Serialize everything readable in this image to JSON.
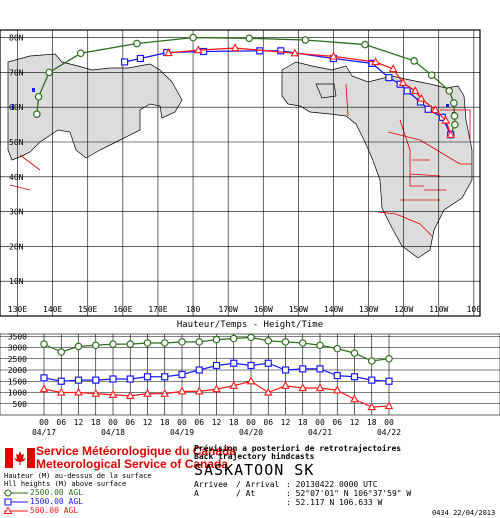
{
  "map": {
    "lat_labels": [
      "80N",
      "70N",
      "60N",
      "50N",
      "40N",
      "30N",
      "20N",
      "10N"
    ],
    "lon_labels": [
      "130E",
      "140E",
      "150E",
      "160E",
      "170E",
      "180",
      "170W",
      "160W",
      "150W",
      "140W",
      "130W",
      "120W",
      "110W",
      "100"
    ],
    "trajectories": [
      {
        "name": "2500 m",
        "color": "#2e6e1e",
        "marker": "circle",
        "points": [
          [
            135.5,
            58
          ],
          [
            136,
            63
          ],
          [
            139,
            70
          ],
          [
            148,
            75.5
          ],
          [
            164,
            78.3
          ],
          [
            180,
            80
          ],
          [
            196,
            79.8
          ],
          [
            212,
            79.3
          ],
          [
            229,
            78
          ],
          [
            243,
            73.3
          ],
          [
            248,
            69.2
          ],
          [
            253,
            64.7
          ],
          [
            254.3,
            61.2
          ],
          [
            254.5,
            57.5
          ],
          [
            254.6,
            55
          ],
          [
            253.4,
            52.1
          ]
        ]
      },
      {
        "name": "1500 m",
        "color": "#1a1aff",
        "marker": "square",
        "points": [
          [
            160.5,
            73
          ],
          [
            165,
            74
          ],
          [
            172.5,
            75.7
          ],
          [
            183,
            76
          ],
          [
            199,
            76.2
          ],
          [
            205,
            76.2
          ],
          [
            220,
            74
          ],
          [
            231,
            72.6
          ],
          [
            235.8,
            68.5
          ],
          [
            239,
            66.6
          ],
          [
            241,
            64.7
          ],
          [
            244.8,
            61.5
          ],
          [
            247,
            59.4
          ],
          [
            251,
            57.1
          ],
          [
            253.4,
            52.1
          ]
        ]
      },
      {
        "name": "500 m",
        "color": "#ff1a1a",
        "marker": "triangle",
        "points": [
          [
            173,
            75.6
          ],
          [
            181.5,
            76.4
          ],
          [
            192,
            77
          ],
          [
            209,
            75.5
          ],
          [
            220,
            74.6
          ],
          [
            232,
            73
          ],
          [
            237,
            71
          ],
          [
            239.8,
            67
          ],
          [
            243.3,
            64.7
          ],
          [
            245,
            62.5
          ],
          [
            249,
            59.2
          ],
          [
            252,
            56.2
          ],
          [
            253.4,
            52.1
          ]
        ]
      }
    ]
  },
  "timeseries": {
    "title": "Hauteur/Temps - Height/Time",
    "ylim": [
      0,
      3600
    ],
    "yticks": [
      500,
      1000,
      1500,
      2000,
      2500,
      3000,
      3500
    ],
    "hour_labels": [
      "00",
      "06",
      "12",
      "18",
      "00",
      "06",
      "12",
      "18",
      "00",
      "06",
      "12",
      "18",
      "00",
      "06",
      "12",
      "18",
      "00",
      "06",
      "12",
      "18",
      "00",
      "06",
      "12",
      "18",
      "00"
    ],
    "date_labels": [
      "04/17",
      "04/18",
      "04/19",
      "04/20",
      "04/21",
      "04/22"
    ]
  },
  "chart_data": {
    "type": "line",
    "title": "Hauteur/Temps - Height/Time",
    "ylim": [
      0,
      3600
    ],
    "x_unit": "6-hour steps from 04/17 00 UTC to 04/22 00 UTC",
    "categories": [
      "04/17 00",
      "04/17 06",
      "04/17 12",
      "04/17 18",
      "04/18 00",
      "04/18 06",
      "04/18 12",
      "04/18 18",
      "04/19 00",
      "04/19 06",
      "04/19 12",
      "04/19 18",
      "04/20 00",
      "04/20 06",
      "04/20 12",
      "04/20 18",
      "04/21 00",
      "04/21 06",
      "04/21 12",
      "04/21 18",
      "04/22 00"
    ],
    "series": [
      {
        "name": "2500.00 AGL",
        "color": "#2e6e1e",
        "marker": "circle",
        "values": [
          3150,
          2800,
          3050,
          3100,
          3150,
          3150,
          3200,
          3200,
          3250,
          3250,
          3350,
          3400,
          3450,
          3300,
          3250,
          3200,
          3100,
          2950,
          2750,
          2400,
          2500
        ]
      },
      {
        "name": "1500.00 AGL",
        "color": "#1a1aff",
        "marker": "square",
        "values": [
          1650,
          1500,
          1550,
          1550,
          1600,
          1600,
          1700,
          1700,
          1800,
          2000,
          2200,
          2300,
          2200,
          2300,
          2000,
          2050,
          2050,
          1750,
          1700,
          1550,
          1500
        ]
      },
      {
        "name": "500.00 AGL",
        "color": "#ff1a1a",
        "marker": "triangle",
        "values": [
          1150,
          1000,
          1000,
          950,
          900,
          850,
          950,
          950,
          1050,
          1050,
          1150,
          1300,
          1500,
          1000,
          1300,
          1200,
          1200,
          1100,
          700,
          350,
          400
        ]
      }
    ]
  },
  "footer": {
    "agency_fr": "Service Météorologique du Canada",
    "agency_en": "Meteorological Service of Canada",
    "legend_title": "Hauteur (M) au-dessus de la surface",
    "legend_subtitle": "Hll heights (M) above surface",
    "legend": [
      "2500.00 AGL",
      "1500.00 AGL",
      "500.00 AGL"
    ],
    "desc_fr": "Prévision a posteriori de retrotrajectoires",
    "desc_en": "Back trajectory hindcasts",
    "station": "SASKATOON SK",
    "arrivee_label": "Arrivee",
    "arrival_label": "/ Arrival",
    "arrival_value": ": 20130422 0000 UTC",
    "a_label": "A",
    "at_label": "/ At",
    "coord_dms": ": 52°07'01\" N 106°37'59\" W",
    "coord_dec": ": 52.117 N 106.633 W",
    "run_stamp": "0434 22/04/2013"
  },
  "colors": {
    "land": "#dcdcdc",
    "green": "#2e6e1e",
    "blue": "#1a1aff",
    "red": "#ff1a1a",
    "border_red": "#e00000"
  }
}
